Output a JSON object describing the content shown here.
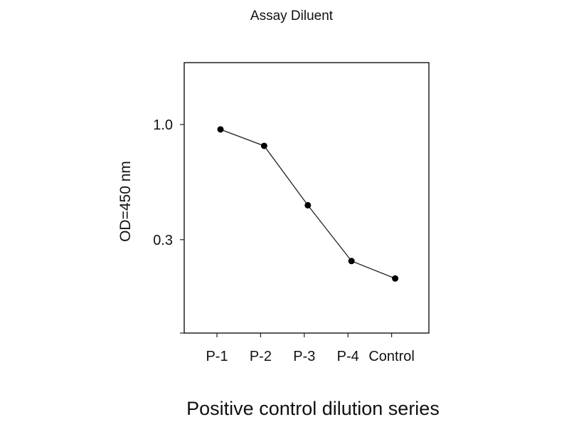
{
  "chart_data": {
    "type": "line",
    "title": "Assay Diluent",
    "xlabel": "Positive control dilution series",
    "ylabel": "OD=450 nm",
    "categories": [
      "P-1",
      "P-2",
      "P-3",
      "P-4",
      "Control"
    ],
    "series": [
      {
        "values": [
          0.95,
          0.8,
          0.43,
          0.24,
          0.2
        ]
      }
    ],
    "yscale": "log",
    "ylim": [
      0.113,
      1.91
    ],
    "yticks": [
      {
        "value": 1.0,
        "label": "1.0"
      },
      {
        "value": 0.3,
        "label": "0.3"
      }
    ],
    "grid": false,
    "marker": "filled-circle",
    "line_color": "#222222",
    "marker_color": "#000000"
  }
}
